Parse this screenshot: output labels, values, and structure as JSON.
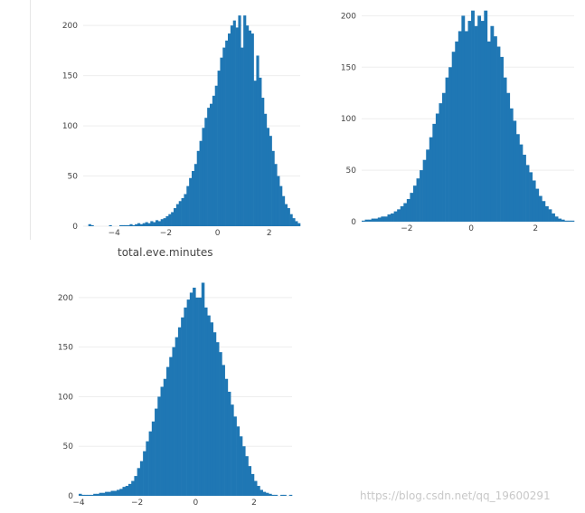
{
  "caption": "total.eve.minutes",
  "watermark": "https://blog.csdn.net/qq_19600291",
  "colors": {
    "bar": "#1f77b4",
    "grid": "#eeeeee",
    "text": "#444444"
  },
  "chart_data": [
    {
      "type": "bar",
      "xlim": [
        -5.2,
        3.2
      ],
      "ylim": [
        0,
        220
      ],
      "xticks": [
        -4,
        -2,
        0,
        2
      ],
      "xtick_labels": [
        "−4",
        "−2",
        "0",
        "2"
      ],
      "yticks": [
        0,
        50,
        100,
        150,
        200
      ],
      "ytick_labels": [
        "0",
        "50",
        "100",
        "150",
        "200"
      ],
      "grid": true,
      "bin_start": -5.0,
      "bin_width": 0.1,
      "values": [
        2,
        1,
        0,
        0,
        0,
        0,
        0,
        0,
        1,
        0,
        0,
        0,
        1,
        1,
        1,
        1,
        2,
        1,
        2,
        3,
        2,
        3,
        4,
        3,
        5,
        4,
        6,
        5,
        7,
        8,
        10,
        12,
        14,
        18,
        22,
        25,
        28,
        32,
        40,
        48,
        55,
        62,
        75,
        85,
        98,
        108,
        118,
        122,
        130,
        140,
        155,
        168,
        178,
        185,
        192,
        200,
        205,
        198,
        210,
        178,
        210,
        200,
        195,
        192,
        145,
        170,
        148,
        128,
        112,
        98,
        90,
        75,
        62,
        50,
        40,
        30,
        22,
        18,
        12,
        8,
        5,
        3,
        2,
        1
      ]
    },
    {
      "type": "bar",
      "xlim": [
        -3.4,
        3.2
      ],
      "ylim": [
        0,
        210
      ],
      "xticks": [
        -2,
        0,
        2
      ],
      "xtick_labels": [
        "−2",
        "0",
        "2"
      ],
      "yticks": [
        0,
        50,
        100,
        150,
        200
      ],
      "ytick_labels": [
        "0",
        "50",
        "100",
        "150",
        "200"
      ],
      "grid": true,
      "bin_start": -3.4,
      "bin_width": 0.1,
      "values": [
        1,
        2,
        2,
        3,
        3,
        4,
        5,
        5,
        7,
        8,
        10,
        12,
        15,
        18,
        22,
        28,
        35,
        42,
        50,
        60,
        70,
        82,
        95,
        105,
        115,
        125,
        140,
        150,
        165,
        175,
        185,
        200,
        185,
        195,
        205,
        190,
        200,
        195,
        205,
        175,
        190,
        180,
        170,
        160,
        140,
        125,
        110,
        98,
        85,
        75,
        65,
        55,
        48,
        40,
        32,
        25,
        20,
        15,
        12,
        8,
        5,
        3,
        2,
        1,
        1,
        1
      ]
    },
    {
      "type": "bar",
      "xlim": [
        -4.0,
        3.3
      ],
      "ylim": [
        0,
        220
      ],
      "xticks": [
        -4,
        -2,
        0,
        2
      ],
      "xtick_labels": [
        "−4",
        "−2",
        "0",
        "2"
      ],
      "yticks": [
        0,
        50,
        100,
        150,
        200
      ],
      "ytick_labels": [
        "0",
        "50",
        "100",
        "150",
        "200"
      ],
      "grid": true,
      "bin_start": -4.0,
      "bin_width": 0.1,
      "values": [
        2,
        1,
        1,
        1,
        1,
        2,
        2,
        3,
        3,
        4,
        4,
        5,
        5,
        6,
        7,
        9,
        10,
        12,
        15,
        20,
        28,
        35,
        45,
        55,
        65,
        75,
        88,
        100,
        110,
        118,
        130,
        140,
        150,
        160,
        170,
        180,
        190,
        198,
        205,
        210,
        200,
        200,
        215,
        190,
        182,
        175,
        165,
        155,
        145,
        132,
        118,
        105,
        92,
        80,
        70,
        60,
        50,
        40,
        30,
        22,
        15,
        10,
        6,
        4,
        3,
        2,
        1,
        1,
        0,
        1,
        1,
        0,
        1
      ]
    }
  ]
}
